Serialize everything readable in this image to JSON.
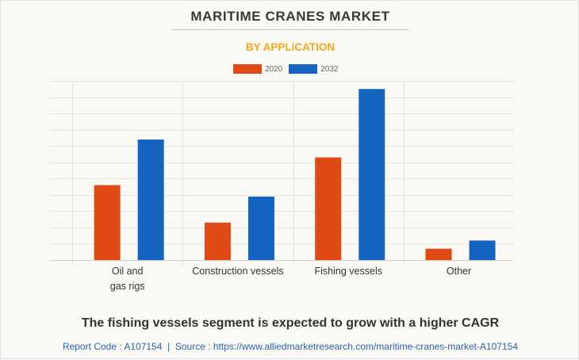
{
  "header": {
    "title": "MARITIME CRANES MARKET",
    "subtitle": "BY APPLICATION"
  },
  "colors": {
    "series_2020": "#E04A16",
    "series_2032": "#1565C0",
    "title": "#383838",
    "subtitle": "#F5A623",
    "source_link": "#2A64AD",
    "background": "#FAF9F4",
    "grid": "#E6E4DE"
  },
  "chart_data": {
    "type": "bar",
    "title": "MARITIME CRANES MARKET",
    "subtitle": "BY APPLICATION",
    "xlabel": "",
    "ylabel": "",
    "categories": [
      "Oil and\ngas rigs",
      "Construction vessels",
      "Fishing vessels",
      "Other"
    ],
    "series": [
      {
        "name": "2020",
        "values": [
          4.6,
          2.3,
          6.3,
          0.7
        ]
      },
      {
        "name": "2032",
        "values": [
          7.4,
          3.9,
          10.5,
          1.2
        ]
      }
    ],
    "ylim": [
      0,
      11
    ],
    "y_grid_step": 1,
    "y_tick_labels_shown": false,
    "grid": true,
    "legend": "top-center",
    "value_note": "No y-axis scale shown; values in relative gridline units"
  },
  "legend": {
    "items": [
      {
        "label": "2020"
      },
      {
        "label": "2032"
      }
    ]
  },
  "footer": {
    "insight": "The fishing vessels segment is expected to grow with a higher CAGR",
    "source": "Report Code : A107154  |  Source : https://www.alliedmarketresearch.com/maritime-cranes-market-A107154"
  }
}
